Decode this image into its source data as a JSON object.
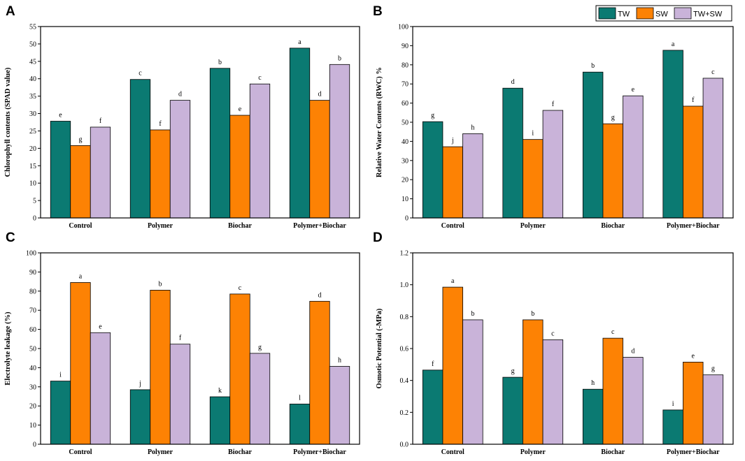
{
  "series_names": [
    "TW",
    "SW",
    "TW+SW"
  ],
  "colors": {
    "TW": "#0b7a72",
    "SW": "#fd8204",
    "TW+SW": "#c9b3d9"
  },
  "chart_data": [
    {
      "letter": "A",
      "type": "bar",
      "title": "",
      "xlabel": "",
      "ylabel": "Chlorophyll contents (SPAD value)",
      "categories": [
        "Control",
        "Polymer",
        "Biochar",
        "Polymer+Biochar"
      ],
      "ylim": [
        0,
        55
      ],
      "yticks": [
        0,
        5,
        10,
        15,
        20,
        25,
        30,
        35,
        40,
        45,
        50,
        55
      ],
      "tick_labels": [
        "0",
        "5",
        "10",
        "15",
        "20",
        "25",
        "30",
        "35",
        "40",
        "45",
        "50",
        "55"
      ],
      "series": [
        {
          "name": "TW",
          "values": [
            27.8,
            39.8,
            43.0,
            48.8
          ],
          "letters": [
            "e",
            "c",
            "b",
            "a"
          ]
        },
        {
          "name": "SW",
          "values": [
            20.8,
            25.3,
            29.5,
            33.8
          ],
          "letters": [
            "g",
            "f",
            "e",
            "d"
          ]
        },
        {
          "name": "TW+SW",
          "values": [
            26.1,
            33.8,
            38.5,
            44.1
          ],
          "letters": [
            "f",
            "d",
            "c",
            "b"
          ]
        }
      ]
    },
    {
      "letter": "B",
      "type": "bar",
      "title": "",
      "xlabel": "",
      "ylabel": "Relative Water Contents (RWC) %",
      "categories": [
        "Control",
        "Polymer",
        "Biochar",
        "Polymer+Biochar"
      ],
      "ylim": [
        0,
        100
      ],
      "yticks": [
        0,
        10,
        20,
        30,
        40,
        50,
        60,
        70,
        80,
        90,
        100
      ],
      "tick_labels": [
        "0",
        "10",
        "20",
        "30",
        "40",
        "50",
        "60",
        "70",
        "80",
        "90",
        "100"
      ],
      "series": [
        {
          "name": "TW",
          "values": [
            50.3,
            67.8,
            76.2,
            87.6
          ],
          "letters": [
            "g",
            "d",
            "b",
            "a"
          ]
        },
        {
          "name": "SW",
          "values": [
            37.2,
            41.0,
            49.2,
            58.4
          ],
          "letters": [
            "j",
            "i",
            "g",
            "f"
          ]
        },
        {
          "name": "TW+SW",
          "values": [
            44.0,
            56.2,
            63.8,
            73.0
          ],
          "letters": [
            "h",
            "f",
            "e",
            "c"
          ]
        }
      ]
    },
    {
      "letter": "C",
      "type": "bar",
      "title": "",
      "xlabel": "",
      "ylabel": "Electrolyte leakage (%)",
      "categories": [
        "Control",
        "Polymer",
        "Biochar",
        "Polymer+Biochar"
      ],
      "ylim": [
        0,
        100
      ],
      "yticks": [
        0,
        10,
        20,
        30,
        40,
        50,
        60,
        70,
        80,
        90,
        100
      ],
      "tick_labels": [
        "0",
        "10",
        "20",
        "30",
        "40",
        "50",
        "60",
        "70",
        "80",
        "90",
        "100"
      ],
      "series": [
        {
          "name": "TW",
          "values": [
            33.0,
            28.5,
            24.8,
            21.0
          ],
          "letters": [
            "i",
            "j",
            "k",
            "l"
          ]
        },
        {
          "name": "SW",
          "values": [
            84.5,
            80.5,
            78.5,
            74.7
          ],
          "letters": [
            "a",
            "b",
            "c",
            "d"
          ]
        },
        {
          "name": "TW+SW",
          "values": [
            58.3,
            52.3,
            47.5,
            40.7
          ],
          "letters": [
            "e",
            "f",
            "g",
            "h"
          ]
        }
      ]
    },
    {
      "letter": "D",
      "type": "bar",
      "title": "",
      "xlabel": "",
      "ylabel": "Osmotic Potential (-MPa)",
      "categories": [
        "Control",
        "Polymer",
        "Biochar",
        "Polymer+Biochar"
      ],
      "ylim": [
        0,
        1.2
      ],
      "yticks": [
        0,
        0.2,
        0.4,
        0.6,
        0.8,
        1.0,
        1.2
      ],
      "tick_labels": [
        "0.0",
        "0.2",
        "0.4",
        "0.6",
        "0.8",
        "1.0",
        "1.2"
      ],
      "series": [
        {
          "name": "TW",
          "values": [
            0.465,
            0.42,
            0.345,
            0.215
          ],
          "letters": [
            "f",
            "g",
            "h",
            "i"
          ]
        },
        {
          "name": "SW",
          "values": [
            0.985,
            0.78,
            0.665,
            0.515
          ],
          "letters": [
            "a",
            "b",
            "c",
            "e"
          ]
        },
        {
          "name": "TW+SW",
          "values": [
            0.78,
            0.655,
            0.545,
            0.435
          ],
          "letters": [
            "b",
            "c",
            "d",
            "g"
          ]
        }
      ]
    }
  ]
}
